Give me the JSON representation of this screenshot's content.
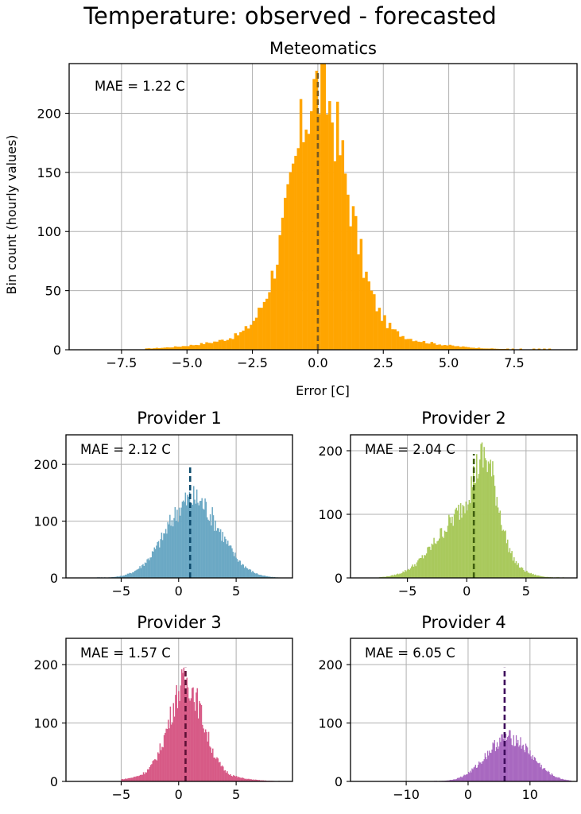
{
  "title": "Temperature: observed - forecasted",
  "ylabel": "Bin count (hourly values)",
  "chart_data": [
    {
      "type": "bar",
      "title": "Meteomatics",
      "xlabel": "Error [C]",
      "ylabel": "Bin count (hourly values)",
      "annotation": "MAE = 1.22 C",
      "color": "#FFA500",
      "line_color": "#7A5A20",
      "xlim": [
        -9.5,
        9.9
      ],
      "ylim": [
        0,
        242
      ],
      "xticks": [
        -7.5,
        -5.0,
        -2.5,
        0.0,
        2.5,
        5.0,
        7.5
      ],
      "xtick_labels": [
        "−7.5",
        "−5.0",
        "−2.5",
        "0.0",
        "2.5",
        "5.0",
        "7.5"
      ],
      "yticks": [
        0,
        50,
        100,
        150,
        200
      ],
      "ytick_labels": [
        "0",
        "50",
        "100",
        "150",
        "200"
      ],
      "grid": true,
      "mean_line": {
        "x": 0.0,
        "y_top": 235
      },
      "distribution": {
        "center": 0.0,
        "peak": 222,
        "sigma_core": 1.05,
        "tail_weight": 0.09,
        "sigma_tail": 2.7,
        "min_x": -6.6,
        "max_x": 8.8,
        "bin_width": 0.1
      }
    },
    {
      "type": "bar",
      "title": "Provider 1",
      "annotation": "MAE = 2.12 C",
      "color": "#6BA8C4",
      "line_color": "#0E4C6E",
      "xlim": [
        -9.8,
        9.9
      ],
      "ylim": [
        0,
        252
      ],
      "xticks": [
        -5,
        0,
        5
      ],
      "xtick_labels": [
        "−5",
        "0",
        "5"
      ],
      "yticks": [
        0,
        100,
        200
      ],
      "ytick_labels": [
        "0",
        "100",
        "200"
      ],
      "grid": true,
      "mean_line": {
        "x": 1.0,
        "y_top": 195
      },
      "distribution": {
        "center": 1.2,
        "peak": 140,
        "sigma_core": 2.3,
        "tail_weight": 0.0,
        "sigma_tail": 3.0,
        "min_x": -7.2,
        "max_x": 8.9,
        "bin_width": 0.09
      }
    },
    {
      "type": "bar",
      "title": "Provider 2",
      "annotation": "MAE = 2.04 C",
      "color": "#A9C95C",
      "line_color": "#3F5F0E",
      "xlim": [
        -9.8,
        9.3
      ],
      "ylim": [
        0,
        225
      ],
      "xticks": [
        -5,
        0,
        5
      ],
      "xtick_labels": [
        "−5",
        "0",
        "5"
      ],
      "yticks": [
        0,
        100,
        200
      ],
      "ytick_labels": [
        "0",
        "100",
        "200"
      ],
      "grid": true,
      "mean_line": {
        "x": 0.6,
        "y_top": 195
      },
      "distribution": {
        "center": 1.6,
        "peak": 180,
        "sigma_core": 1.1,
        "tail_weight": 0.55,
        "sigma_tail": 2.6,
        "min_x": -7.4,
        "max_x": 8.4,
        "bin_width": 0.09
      }
    },
    {
      "type": "bar",
      "title": "Provider 3",
      "annotation": "MAE = 1.57 C",
      "color": "#D75A86",
      "line_color": "#5E1036",
      "xlim": [
        -9.8,
        9.9
      ],
      "ylim": [
        0,
        245
      ],
      "xticks": [
        -5,
        0,
        5
      ],
      "xtick_labels": [
        "−5",
        "0",
        "5"
      ],
      "yticks": [
        0,
        100,
        200
      ],
      "ytick_labels": [
        "0",
        "100",
        "200"
      ],
      "grid": true,
      "mean_line": {
        "x": 0.6,
        "y_top": 195
      },
      "distribution": {
        "center": 0.6,
        "peak": 170,
        "sigma_core": 1.4,
        "tail_weight": 0.12,
        "sigma_tail": 3.0,
        "min_x": -5.0,
        "max_x": 9.0,
        "bin_width": 0.09
      }
    },
    {
      "type": "bar",
      "title": "Provider 4",
      "annotation": "MAE = 6.05 C",
      "color": "#A868C0",
      "line_color": "#3E0C5C",
      "xlim": [
        -19.0,
        17.6
      ],
      "ylim": [
        0,
        245
      ],
      "xticks": [
        -10,
        0,
        10
      ],
      "xtick_labels": [
        "−10",
        "0",
        "10"
      ],
      "yticks": [
        0,
        100,
        200
      ],
      "ytick_labels": [
        "0",
        "100",
        "200"
      ],
      "grid": true,
      "mean_line": {
        "x": 5.9,
        "y_top": 195
      },
      "distribution": {
        "center": 6.5,
        "peak": 75,
        "sigma_core": 3.6,
        "tail_weight": 0.0,
        "sigma_tail": 4.0,
        "min_x": -5.6,
        "max_x": 16.6,
        "bin_width": 0.14
      }
    }
  ]
}
